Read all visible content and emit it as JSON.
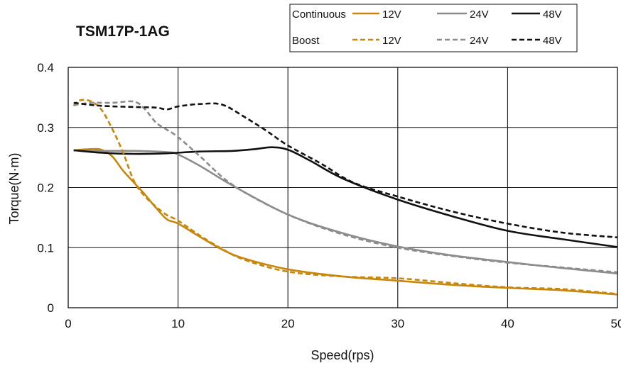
{
  "chart_data": {
    "type": "line",
    "title": "TSM17P-1AG",
    "xlabel": "Speed(rps)",
    "ylabel": "Torque(N·m)",
    "xlim": [
      0,
      50
    ],
    "ylim": [
      0,
      0.4
    ],
    "xticks": [
      "0",
      "10",
      "20",
      "30",
      "40",
      "50"
    ],
    "yticks": [
      "0",
      "0.1",
      "0.2",
      "0.3",
      "0.4"
    ],
    "grid": true,
    "legend_position": "top-right",
    "legend_groups": [
      "Continuous",
      "Boost"
    ],
    "series": [
      {
        "name": "12V",
        "group": "Continuous",
        "style": "solid",
        "color": "#C8860A",
        "x": [
          0.5,
          2,
          3,
          4,
          5,
          6,
          7,
          8,
          9,
          10,
          12,
          14,
          16,
          20,
          25,
          30,
          35,
          40,
          45,
          50
        ],
        "y": [
          0.262,
          0.264,
          0.263,
          0.252,
          0.228,
          0.208,
          0.188,
          0.166,
          0.147,
          0.14,
          0.118,
          0.097,
          0.082,
          0.064,
          0.052,
          0.045,
          0.038,
          0.033,
          0.029,
          0.022
        ]
      },
      {
        "name": "24V",
        "group": "Continuous",
        "style": "solid",
        "color": "#8C8C8C",
        "x": [
          0.5,
          3,
          6,
          9,
          10,
          12,
          15,
          20,
          25,
          30,
          35,
          40,
          45,
          50
        ],
        "y": [
          0.262,
          0.261,
          0.261,
          0.259,
          0.255,
          0.236,
          0.203,
          0.155,
          0.124,
          0.102,
          0.087,
          0.076,
          0.066,
          0.057
        ]
      },
      {
        "name": "48V",
        "group": "Continuous",
        "style": "solid",
        "color": "#111111",
        "x": [
          0.5,
          3,
          6,
          9,
          12,
          15,
          17,
          18.5,
          20,
          22,
          25,
          30,
          35,
          40,
          45,
          50
        ],
        "y": [
          0.262,
          0.258,
          0.256,
          0.257,
          0.26,
          0.261,
          0.264,
          0.267,
          0.263,
          0.245,
          0.215,
          0.18,
          0.152,
          0.128,
          0.114,
          0.101
        ]
      },
      {
        "name": "12V",
        "group": "Boost",
        "style": "dashed",
        "color": "#C8860A",
        "x": [
          0.5,
          1,
          2,
          3,
          4,
          5,
          6,
          7,
          8,
          9,
          10,
          12,
          14,
          16,
          20,
          25,
          30,
          35,
          40,
          45,
          50
        ],
        "y": [
          0.336,
          0.345,
          0.344,
          0.33,
          0.298,
          0.258,
          0.21,
          0.185,
          0.168,
          0.154,
          0.145,
          0.12,
          0.098,
          0.08,
          0.06,
          0.052,
          0.049,
          0.041,
          0.034,
          0.031,
          0.023
        ]
      },
      {
        "name": "24V",
        "group": "Boost",
        "style": "dashed",
        "color": "#8C8C8C",
        "x": [
          0.5,
          2,
          4,
          6,
          7,
          8,
          9,
          10,
          12,
          15,
          20,
          25,
          30,
          35,
          40,
          45,
          50
        ],
        "y": [
          0.337,
          0.341,
          0.341,
          0.343,
          0.33,
          0.308,
          0.296,
          0.284,
          0.252,
          0.204,
          0.155,
          0.122,
          0.1,
          0.086,
          0.075,
          0.067,
          0.059
        ]
      },
      {
        "name": "48V",
        "group": "Boost",
        "style": "dashed",
        "color": "#111111",
        "x": [
          0.5,
          3,
          6,
          8,
          9,
          10,
          12,
          14,
          16,
          18,
          20,
          23,
          26,
          30,
          35,
          40,
          45,
          50
        ],
        "y": [
          0.341,
          0.336,
          0.334,
          0.333,
          0.33,
          0.335,
          0.339,
          0.338,
          0.318,
          0.295,
          0.27,
          0.24,
          0.208,
          0.185,
          0.16,
          0.14,
          0.125,
          0.117
        ]
      }
    ]
  }
}
